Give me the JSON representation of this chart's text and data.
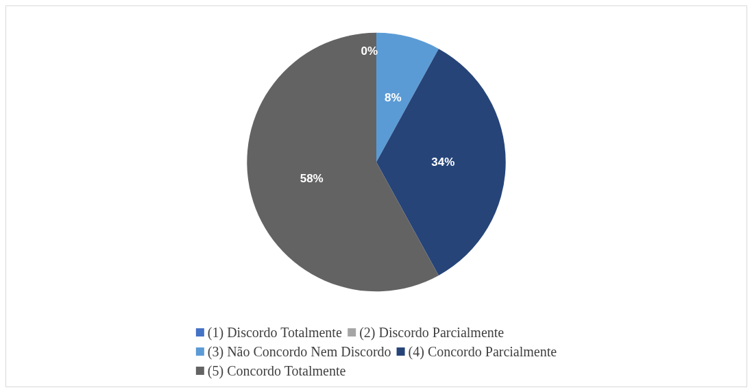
{
  "chart_data": {
    "type": "pie",
    "categories": [
      "(1) Discordo Totalmente",
      "(2) Discordo Parcialmente",
      "(3) Não Concordo Nem Discordo",
      "(4) Concordo Parcialmente",
      "(5) Concordo Totalmente"
    ],
    "values": [
      0,
      0,
      8,
      34,
      58
    ],
    "colors": [
      "#4472c4",
      "#a5a5a5",
      "#5b9bd5",
      "#264478",
      "#636363"
    ],
    "value_labels": [
      "0%",
      null,
      "8%",
      "34%",
      "58%"
    ],
    "legend": "bottom"
  }
}
